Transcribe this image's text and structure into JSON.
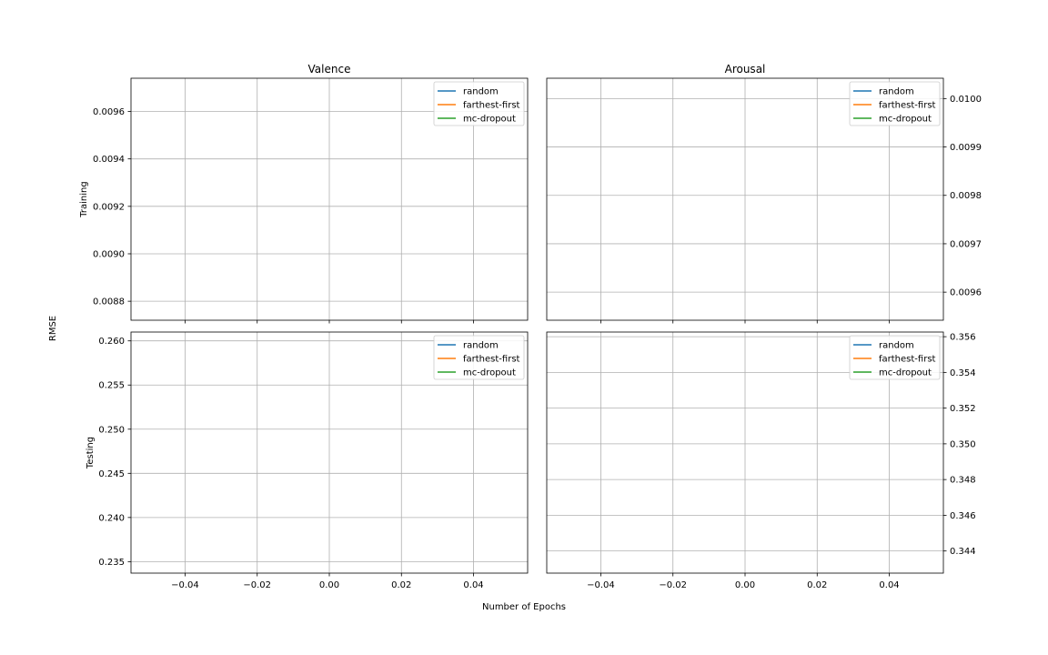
{
  "figure": {
    "shared_ylabel": "RMSE",
    "shared_xlabel": "Number of Epochs"
  },
  "chart_data": [
    {
      "type": "line",
      "title": "Valence",
      "ylabel": "Training",
      "xlabel": "",
      "xlim": [
        -0.055,
        0.055
      ],
      "ylim": [
        0.00872,
        0.00974
      ],
      "xticks": [
        -0.04,
        -0.02,
        0.0,
        0.02,
        0.04
      ],
      "xtick_labels": [
        "−0.04",
        "−0.02",
        "0.00",
        "0.02",
        "0.04"
      ],
      "show_xtick_labels": false,
      "yticks": [
        0.0088,
        0.009,
        0.0092,
        0.0094,
        0.0096
      ],
      "ytick_labels": [
        "0.0088",
        "0.0090",
        "0.0092",
        "0.0094",
        "0.0096"
      ],
      "y_axis_side": "left",
      "grid": true,
      "legend_position": "top-right",
      "series": [
        {
          "name": "random",
          "color": "#1f77b4",
          "x": [],
          "y": []
        },
        {
          "name": "farthest-first",
          "color": "#ff7f0e",
          "x": [],
          "y": []
        },
        {
          "name": "mc-dropout",
          "color": "#2ca02c",
          "x": [],
          "y": []
        }
      ]
    },
    {
      "type": "line",
      "title": "Arousal",
      "ylabel": "",
      "xlabel": "",
      "xlim": [
        -0.055,
        0.055
      ],
      "ylim": [
        0.009542,
        0.010042
      ],
      "xticks": [
        -0.04,
        -0.02,
        0.0,
        0.02,
        0.04
      ],
      "xtick_labels": [
        "−0.04",
        "−0.02",
        "0.00",
        "0.02",
        "0.04"
      ],
      "show_xtick_labels": false,
      "yticks": [
        0.0096,
        0.0097,
        0.0098,
        0.0099,
        0.01
      ],
      "ytick_labels": [
        "0.0096",
        "0.0097",
        "0.0098",
        "0.0099",
        "0.0100"
      ],
      "y_axis_side": "right",
      "grid": true,
      "legend_position": "top-right",
      "series": [
        {
          "name": "random",
          "color": "#1f77b4",
          "x": [],
          "y": []
        },
        {
          "name": "farthest-first",
          "color": "#ff7f0e",
          "x": [],
          "y": []
        },
        {
          "name": "mc-dropout",
          "color": "#2ca02c",
          "x": [],
          "y": []
        }
      ]
    },
    {
      "type": "line",
      "title": "",
      "ylabel": "Testing",
      "xlabel": "",
      "xlim": [
        -0.055,
        0.055
      ],
      "ylim": [
        0.2337,
        0.261
      ],
      "xticks": [
        -0.04,
        -0.02,
        0.0,
        0.02,
        0.04
      ],
      "xtick_labels": [
        "−0.04",
        "−0.02",
        "0.00",
        "0.02",
        "0.04"
      ],
      "show_xtick_labels": true,
      "yticks": [
        0.235,
        0.24,
        0.245,
        0.25,
        0.255,
        0.26
      ],
      "ytick_labels": [
        "0.235",
        "0.240",
        "0.245",
        "0.250",
        "0.255",
        "0.260"
      ],
      "y_axis_side": "left",
      "grid": true,
      "legend_position": "top-right",
      "series": [
        {
          "name": "random",
          "color": "#1f77b4",
          "x": [],
          "y": []
        },
        {
          "name": "farthest-first",
          "color": "#ff7f0e",
          "x": [],
          "y": []
        },
        {
          "name": "mc-dropout",
          "color": "#2ca02c",
          "x": [],
          "y": []
        }
      ]
    },
    {
      "type": "line",
      "title": "",
      "ylabel": "",
      "xlabel": "",
      "xlim": [
        -0.055,
        0.055
      ],
      "ylim": [
        0.34276,
        0.35626
      ],
      "xticks": [
        -0.04,
        -0.02,
        0.0,
        0.02,
        0.04
      ],
      "xtick_labels": [
        "−0.04",
        "−0.02",
        "0.00",
        "0.02",
        "0.04"
      ],
      "show_xtick_labels": true,
      "yticks": [
        0.344,
        0.346,
        0.348,
        0.35,
        0.352,
        0.354,
        0.356
      ],
      "ytick_labels": [
        "0.344",
        "0.346",
        "0.348",
        "0.350",
        "0.352",
        "0.354",
        "0.356"
      ],
      "y_axis_side": "right",
      "grid": true,
      "legend_position": "top-right",
      "series": [
        {
          "name": "random",
          "color": "#1f77b4",
          "x": [],
          "y": []
        },
        {
          "name": "farthest-first",
          "color": "#ff7f0e",
          "x": [],
          "y": []
        },
        {
          "name": "mc-dropout",
          "color": "#2ca02c",
          "x": [],
          "y": []
        }
      ]
    }
  ]
}
